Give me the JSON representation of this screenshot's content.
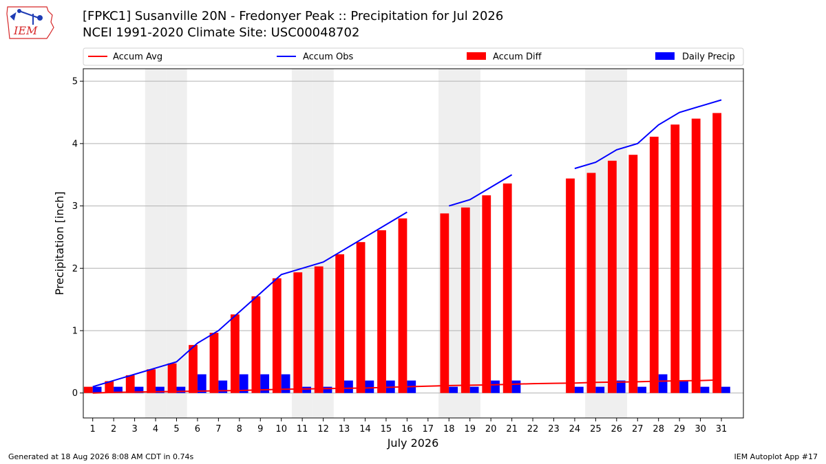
{
  "logo": {
    "text": "IEM",
    "color": "#d62728",
    "icon_color": "#1f3cb4"
  },
  "header": {
    "title": "[FPKC1] Susanville 20N - Fredonyer Peak :: Precipitation for Jul 2026",
    "subtitle": "NCEI 1991-2020 Climate Site: USC00048702"
  },
  "footer": {
    "left": "Generated at 18 Aug 2026 8:08 AM CDT in 0.74s",
    "right": "IEM Autoplot App #17"
  },
  "chart_data": {
    "type": "bar",
    "xlabel": "July 2026",
    "ylabel": "Precipitation [inch]",
    "ylim": [
      -0.4,
      5.2
    ],
    "yticks": [
      0,
      1,
      2,
      3,
      4,
      5
    ],
    "grid": true,
    "legend_placement": "top",
    "categories": [
      "1",
      "2",
      "3",
      "4",
      "5",
      "6",
      "7",
      "8",
      "9",
      "10",
      "11",
      "12",
      "13",
      "14",
      "15",
      "16",
      "17",
      "18",
      "19",
      "20",
      "21",
      "22",
      "23",
      "24",
      "25",
      "26",
      "27",
      "28",
      "29",
      "30",
      "31"
    ],
    "weekend_days": [
      4,
      5,
      11,
      12,
      18,
      19,
      25,
      26
    ],
    "series": [
      {
        "name": "Accum Avg",
        "type": "line",
        "color": "#ff0000",
        "values": [
          0.0,
          0.01,
          0.015,
          0.02,
          0.025,
          0.03,
          0.035,
          0.04,
          0.05,
          0.06,
          0.065,
          0.07,
          0.075,
          0.08,
          0.09,
          0.1,
          0.11,
          0.12,
          0.125,
          0.13,
          0.14,
          0.15,
          0.155,
          0.16,
          0.17,
          0.175,
          0.18,
          0.19,
          0.195,
          0.2,
          0.21
        ]
      },
      {
        "name": "Accum Obs",
        "type": "line",
        "color": "#0000ff",
        "values": [
          0.1,
          0.2,
          0.3,
          0.4,
          0.5,
          0.8,
          1.0,
          1.3,
          1.6,
          1.9,
          2.0,
          2.1,
          2.3,
          2.5,
          2.7,
          2.9,
          null,
          3.0,
          3.1,
          3.3,
          3.5,
          null,
          null,
          3.6,
          3.7,
          3.9,
          4.0,
          4.3,
          4.5,
          4.6,
          4.7
        ]
      },
      {
        "name": "Accum Diff",
        "type": "bar",
        "color": "#ff0000",
        "values": [
          0.1,
          0.19,
          0.285,
          0.38,
          0.475,
          0.77,
          0.965,
          1.26,
          1.55,
          1.84,
          1.935,
          2.03,
          2.225,
          2.42,
          2.61,
          2.8,
          null,
          2.88,
          2.975,
          3.17,
          3.36,
          null,
          null,
          3.44,
          3.53,
          3.725,
          3.82,
          4.11,
          4.305,
          4.4,
          4.49
        ]
      },
      {
        "name": "Daily Precip",
        "type": "bar",
        "color": "#0000ff",
        "values": [
          0.1,
          0.1,
          0.1,
          0.1,
          0.1,
          0.3,
          0.2,
          0.3,
          0.3,
          0.3,
          0.1,
          0.1,
          0.2,
          0.2,
          0.2,
          0.2,
          null,
          0.1,
          0.1,
          0.2,
          0.2,
          null,
          null,
          0.1,
          0.1,
          0.2,
          0.1,
          0.3,
          0.2,
          0.1,
          0.1
        ]
      }
    ]
  }
}
